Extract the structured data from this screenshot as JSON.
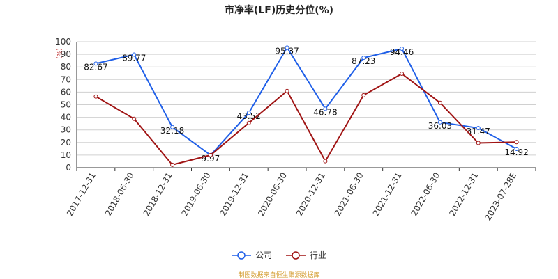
{
  "chart_data": {
    "type": "line",
    "title": "市净率(LF)历史分位(%)",
    "unit_label": "(%)",
    "categories": [
      "2017-12-31",
      "2018-06-30",
      "2018-12-31",
      "2019-06-30",
      "2019-12-31",
      "2020-06-30",
      "2020-12-31",
      "2021-06-30",
      "2021-12-31",
      "2022-06-30",
      "2022-12-31",
      "2023-07-28E"
    ],
    "series": [
      {
        "name": "公司",
        "color": "#1f5fe8",
        "values": [
          82.67,
          89.77,
          32.18,
          9.97,
          43.52,
          95.37,
          46.78,
          87.23,
          94.46,
          36.03,
          31.47,
          14.92
        ],
        "labels": [
          "82.67",
          "89.77",
          "32.18",
          "9.97",
          "43.52",
          "95.37",
          "46.78",
          "87.23",
          "94.46",
          "36.03",
          "31.47",
          "14.92"
        ]
      },
      {
        "name": "行业",
        "color": "#a01414",
        "values": [
          56.5,
          38.8,
          2.3,
          10.0,
          35.5,
          60.9,
          5.2,
          57.5,
          74.6,
          51.5,
          19.6,
          20.3
        ]
      }
    ],
    "ylim": [
      0,
      100
    ],
    "yticks": [
      0,
      10,
      20,
      30,
      40,
      50,
      60,
      70,
      80,
      90,
      100
    ],
    "grid": true,
    "legend_position": "bottom"
  },
  "source_note": "制图数据来自恒生聚源数据库"
}
